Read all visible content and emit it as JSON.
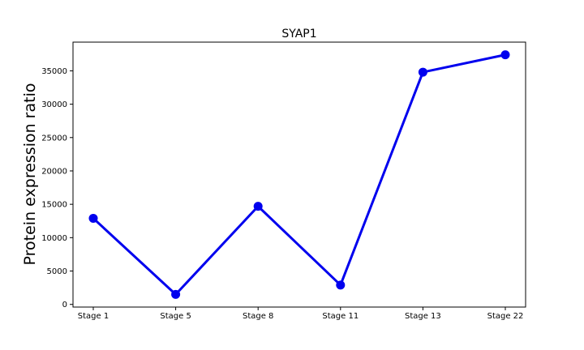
{
  "chart_data": {
    "type": "line",
    "title": "SYAP1",
    "xlabel": "",
    "ylabel": "Protein expression ratio",
    "categories": [
      "Stage 1",
      "Stage 5",
      "Stage 8",
      "Stage 11",
      "Stage 13",
      "Stage 22"
    ],
    "series": [
      {
        "values": [
          12900,
          1500,
          14700,
          2900,
          34800,
          37400
        ],
        "color": "#0000ee"
      }
    ],
    "ylim": [
      -400,
      39300
    ],
    "yticks": [
      0,
      5000,
      10000,
      15000,
      20000,
      25000,
      30000,
      35000
    ],
    "ytick_labels": [
      "0",
      "5000",
      "10000",
      "15000",
      "20000",
      "25000",
      "30000",
      "35000"
    ],
    "grid": false,
    "legend": "none",
    "marker": "circle"
  }
}
